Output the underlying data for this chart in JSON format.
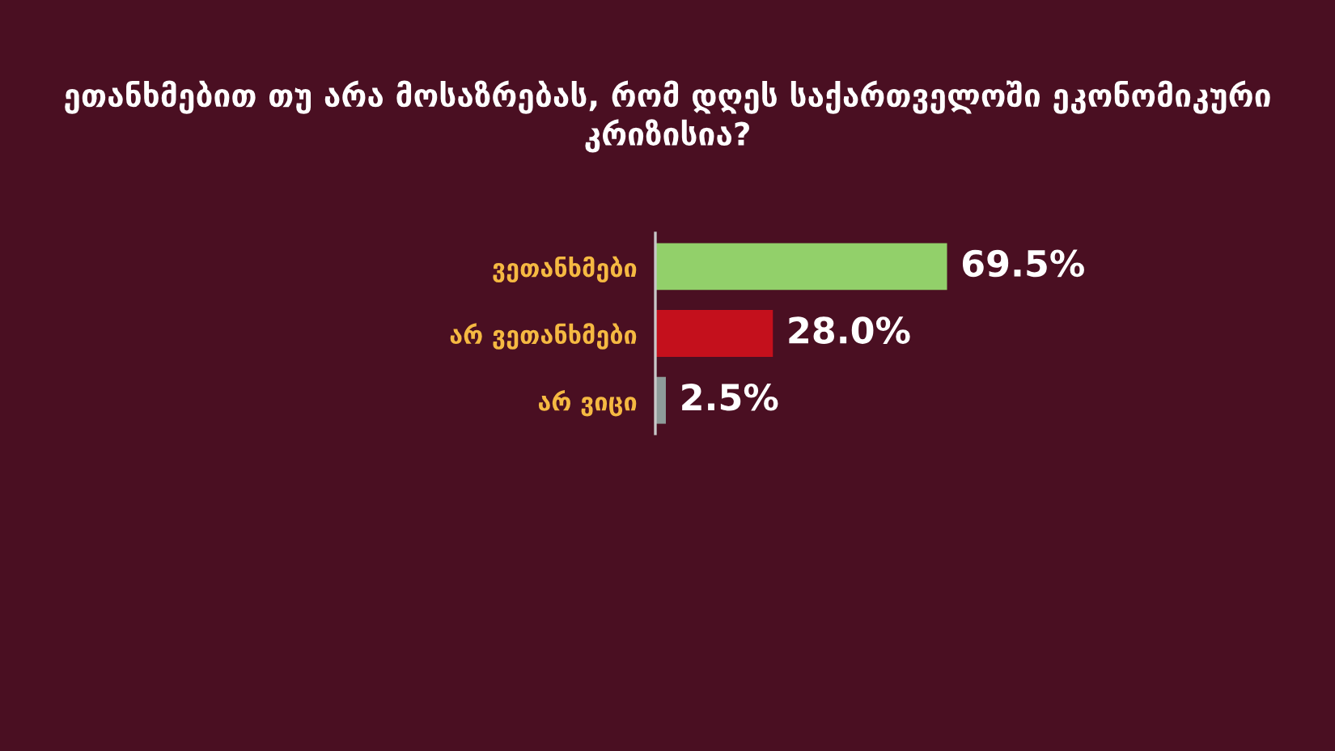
{
  "chart_data": {
    "type": "bar",
    "orientation": "horizontal",
    "title": "ეთანხმებით თუ არა მოსაზრებას, რომ დღეს საქართველოში ეკონომიკური კრიზისია?",
    "categories": [
      "ვეთანხმები",
      "არ ვეთანხმები",
      "არ ვიცი"
    ],
    "values": [
      69.5,
      28.0,
      2.5
    ],
    "colors": [
      "#92d06a",
      "#c4101c",
      "#8e9c9a"
    ],
    "value_labels": [
      "69.5%",
      "28.0%",
      "2.5%"
    ],
    "grid": false,
    "legend": false
  }
}
